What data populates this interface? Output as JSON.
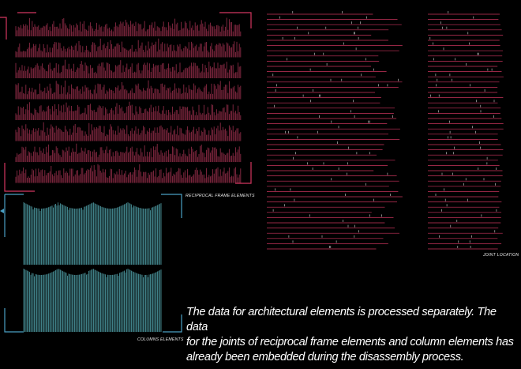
{
  "labels": {
    "reciprocal": "RECIPROCAL FRAME ELEMENTS",
    "columns": "COLUMNS ELEMENTS",
    "joints": "JOINT  LOCATION"
  },
  "description": {
    "line1": "The data for architectural elements is processed separately. The data",
    "line2": "for the joints of reciprocal frame elements and column elements has",
    "line3": "already been embedded during the disassembly process."
  },
  "colors": {
    "background": "#000000",
    "reciprocal_accent": "#d4365f",
    "reciprocal_bars": "#8a2a45",
    "column_accent": "#4a9fc4",
    "column_bars": "#3f7f86",
    "joint_lines": "#c9345c",
    "joint_text": "#d8d8d8"
  }
}
